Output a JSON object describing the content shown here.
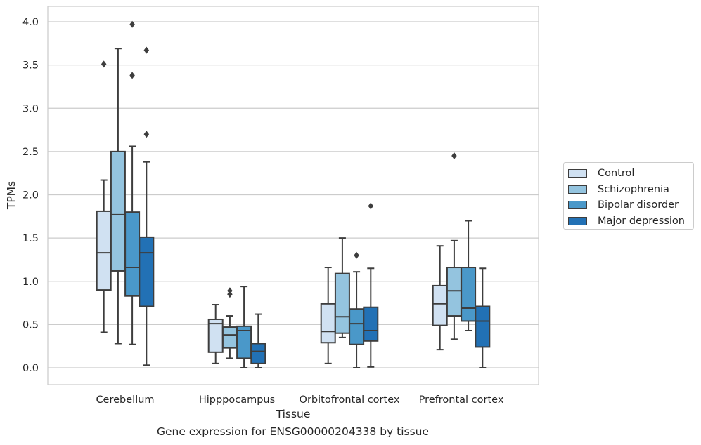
{
  "chart_data": {
    "type": "boxplot",
    "xlabel": "Tissue",
    "ylabel": "TPMs",
    "caption": "Gene expression for ENSG00000204338 by tissue",
    "ylim": [
      -0.19,
      4.18
    ],
    "yticks": [
      "0.0",
      "0.5",
      "1.0",
      "1.5",
      "2.0",
      "2.5",
      "3.0",
      "3.5",
      "4.0"
    ],
    "grid": "horizontal",
    "legend_position": "right",
    "categories": [
      "Cerebellum",
      "Hipppocampus",
      "Orbitofrontal cortex",
      "Prefrontal cortex"
    ],
    "series": [
      {
        "name": "Control",
        "color": "#d0e1f2",
        "boxes": [
          {
            "whisker_low": 0.41,
            "q1": 0.9,
            "median": 1.33,
            "q3": 1.81,
            "whisker_high": 2.17,
            "outliers": [
              3.51
            ]
          },
          {
            "whisker_low": 0.05,
            "q1": 0.18,
            "median": 0.51,
            "q3": 0.56,
            "whisker_high": 0.73,
            "outliers": []
          },
          {
            "whisker_low": 0.05,
            "q1": 0.29,
            "median": 0.42,
            "q3": 0.74,
            "whisker_high": 1.16,
            "outliers": []
          },
          {
            "whisker_low": 0.21,
            "q1": 0.49,
            "median": 0.74,
            "q3": 0.95,
            "whisker_high": 1.41,
            "outliers": []
          }
        ]
      },
      {
        "name": "Schizophrenia",
        "color": "#94c4df",
        "boxes": [
          {
            "whisker_low": 0.28,
            "q1": 1.12,
            "median": 1.77,
            "q3": 2.5,
            "whisker_high": 3.69,
            "outliers": []
          },
          {
            "whisker_low": 0.11,
            "q1": 0.23,
            "median": 0.38,
            "q3": 0.47,
            "whisker_high": 0.6,
            "outliers": [
              0.85,
              0.89
            ]
          },
          {
            "whisker_low": 0.35,
            "q1": 0.4,
            "median": 0.59,
            "q3": 1.09,
            "whisker_high": 1.5,
            "outliers": []
          },
          {
            "whisker_low": 0.33,
            "q1": 0.6,
            "median": 0.89,
            "q3": 1.16,
            "whisker_high": 1.47,
            "outliers": [
              2.45
            ]
          }
        ]
      },
      {
        "name": "Bipolar disorder",
        "color": "#4a98c9",
        "boxes": [
          {
            "whisker_low": 0.27,
            "q1": 0.83,
            "median": 1.16,
            "q3": 1.8,
            "whisker_high": 2.56,
            "outliers": [
              3.38,
              3.97
            ]
          },
          {
            "whisker_low": 0.0,
            "q1": 0.11,
            "median": 0.43,
            "q3": 0.48,
            "whisker_high": 0.94,
            "outliers": []
          },
          {
            "whisker_low": 0.0,
            "q1": 0.27,
            "median": 0.51,
            "q3": 0.68,
            "whisker_high": 1.11,
            "outliers": [
              1.3
            ]
          },
          {
            "whisker_low": 0.43,
            "q1": 0.54,
            "median": 0.69,
            "q3": 1.16,
            "whisker_high": 1.7,
            "outliers": []
          }
        ]
      },
      {
        "name": "Major depression",
        "color": "#2271b5",
        "boxes": [
          {
            "whisker_low": 0.03,
            "q1": 0.71,
            "median": 1.33,
            "q3": 1.51,
            "whisker_high": 2.38,
            "outliers": [
              2.7,
              3.67
            ]
          },
          {
            "whisker_low": 0.0,
            "q1": 0.05,
            "median": 0.19,
            "q3": 0.28,
            "whisker_high": 0.62,
            "outliers": []
          },
          {
            "whisker_low": 0.01,
            "q1": 0.31,
            "median": 0.43,
            "q3": 0.7,
            "whisker_high": 1.15,
            "outliers": [
              1.87
            ]
          },
          {
            "whisker_low": 0.0,
            "q1": 0.24,
            "median": 0.54,
            "q3": 0.71,
            "whisker_high": 1.15,
            "outliers": []
          }
        ]
      }
    ]
  }
}
